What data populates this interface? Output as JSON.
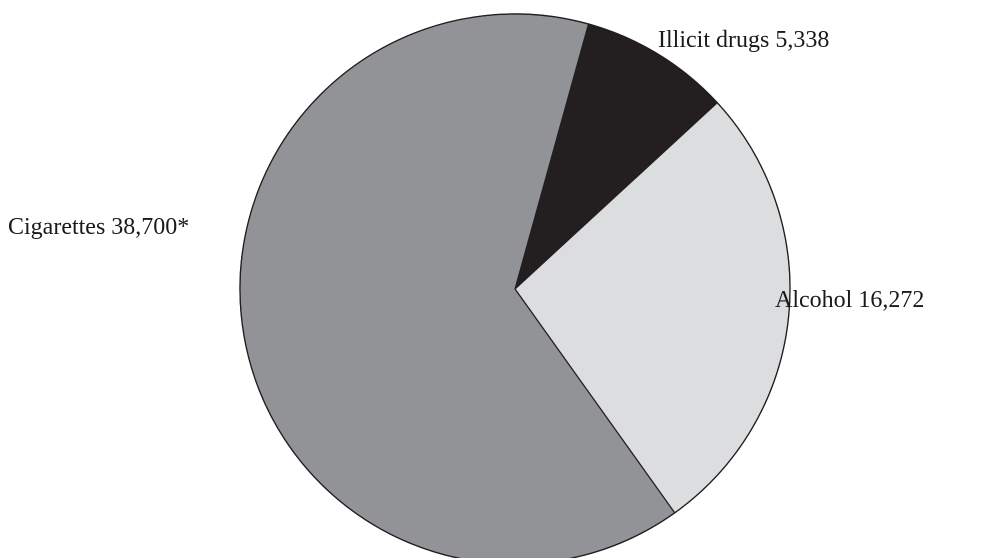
{
  "chart_data": {
    "type": "pie",
    "slices": [
      {
        "label": "Illicit drugs 5,338",
        "name": "Illicit drugs",
        "value": 5338,
        "color": "#231f20"
      },
      {
        "label": "Alcohol 16,272",
        "name": "Alcohol",
        "value": 16272,
        "color": "#dcdddf"
      },
      {
        "label": "Cigarettes 38,700*",
        "name": "Cigarettes",
        "value": 38700,
        "color": "#929396"
      }
    ],
    "slice_order": "clockwise starting from Illicit drugs",
    "outline_color": "#231f20"
  }
}
